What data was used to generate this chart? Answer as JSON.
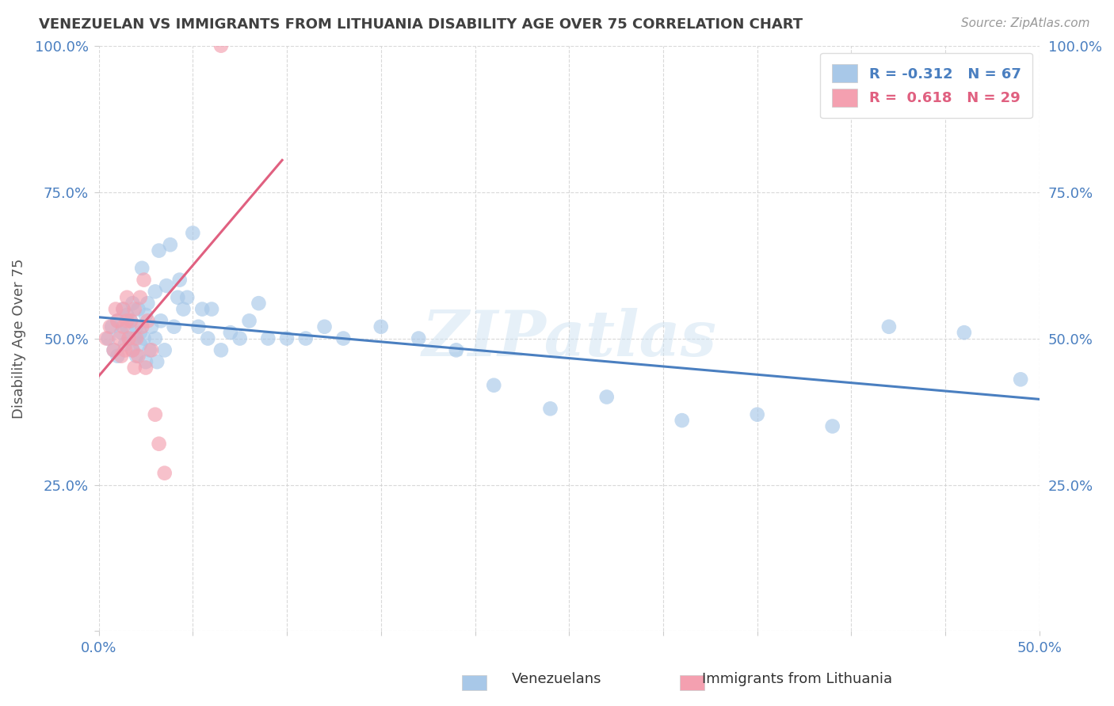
{
  "title": "VENEZUELAN VS IMMIGRANTS FROM LITHUANIA DISABILITY AGE OVER 75 CORRELATION CHART",
  "source": "Source: ZipAtlas.com",
  "ylabel": "Disability Age Over 75",
  "xlim": [
    0.0,
    0.5
  ],
  "ylim": [
    0.0,
    1.0
  ],
  "xtick_positions": [
    0.0,
    0.05,
    0.1,
    0.15,
    0.2,
    0.25,
    0.3,
    0.35,
    0.4,
    0.45,
    0.5
  ],
  "ytick_positions": [
    0.0,
    0.25,
    0.5,
    0.75,
    1.0
  ],
  "watermark_text": "ZIPatlas",
  "venezuelan_x": [
    0.005,
    0.007,
    0.008,
    0.01,
    0.01,
    0.012,
    0.013,
    0.014,
    0.015,
    0.015,
    0.016,
    0.017,
    0.018,
    0.018,
    0.019,
    0.02,
    0.02,
    0.021,
    0.022,
    0.022,
    0.023,
    0.024,
    0.025,
    0.025,
    0.026,
    0.027,
    0.028,
    0.03,
    0.03,
    0.031,
    0.032,
    0.033,
    0.035,
    0.036,
    0.038,
    0.04,
    0.042,
    0.043,
    0.045,
    0.047,
    0.05,
    0.053,
    0.055,
    0.058,
    0.06,
    0.065,
    0.07,
    0.075,
    0.08,
    0.085,
    0.09,
    0.1,
    0.11,
    0.12,
    0.13,
    0.15,
    0.17,
    0.19,
    0.21,
    0.24,
    0.27,
    0.31,
    0.35,
    0.39,
    0.42,
    0.46,
    0.49
  ],
  "venezuelan_y": [
    0.5,
    0.52,
    0.48,
    0.53,
    0.47,
    0.51,
    0.55,
    0.49,
    0.52,
    0.54,
    0.5,
    0.53,
    0.48,
    0.56,
    0.5,
    0.52,
    0.47,
    0.55,
    0.49,
    0.51,
    0.62,
    0.5,
    0.46,
    0.54,
    0.56,
    0.48,
    0.52,
    0.58,
    0.5,
    0.46,
    0.65,
    0.53,
    0.48,
    0.59,
    0.66,
    0.52,
    0.57,
    0.6,
    0.55,
    0.57,
    0.68,
    0.52,
    0.55,
    0.5,
    0.55,
    0.48,
    0.51,
    0.5,
    0.53,
    0.56,
    0.5,
    0.5,
    0.5,
    0.52,
    0.5,
    0.52,
    0.5,
    0.48,
    0.42,
    0.38,
    0.4,
    0.36,
    0.37,
    0.35,
    0.52,
    0.51,
    0.43
  ],
  "lithuania_x": [
    0.004,
    0.006,
    0.008,
    0.009,
    0.01,
    0.011,
    0.012,
    0.013,
    0.013,
    0.014,
    0.015,
    0.015,
    0.016,
    0.017,
    0.018,
    0.019,
    0.019,
    0.02,
    0.021,
    0.022,
    0.023,
    0.024,
    0.025,
    0.026,
    0.028,
    0.03,
    0.032,
    0.035,
    0.065
  ],
  "lithuania_y": [
    0.5,
    0.52,
    0.48,
    0.55,
    0.53,
    0.5,
    0.47,
    0.52,
    0.55,
    0.48,
    0.53,
    0.57,
    0.5,
    0.53,
    0.48,
    0.45,
    0.55,
    0.5,
    0.47,
    0.57,
    0.52,
    0.6,
    0.45,
    0.53,
    0.48,
    0.37,
    0.32,
    0.27,
    1.0
  ],
  "blue_scatter_color": "#a8c8e8",
  "pink_scatter_color": "#f4a0b0",
  "blue_line_color": "#4a7fc0",
  "pink_line_color": "#e06080",
  "grid_color": "#d0d0d0",
  "title_color": "#404040",
  "ylabel_color": "#555555",
  "tick_color": "#4a7fc0",
  "source_color": "#999999",
  "legend_R_blue": "-0.312",
  "legend_N_blue": "67",
  "legend_R_pink": "0.618",
  "legend_N_pink": "29",
  "scatter_size": 180,
  "scatter_alpha": 0.65,
  "line_width": 2.2
}
